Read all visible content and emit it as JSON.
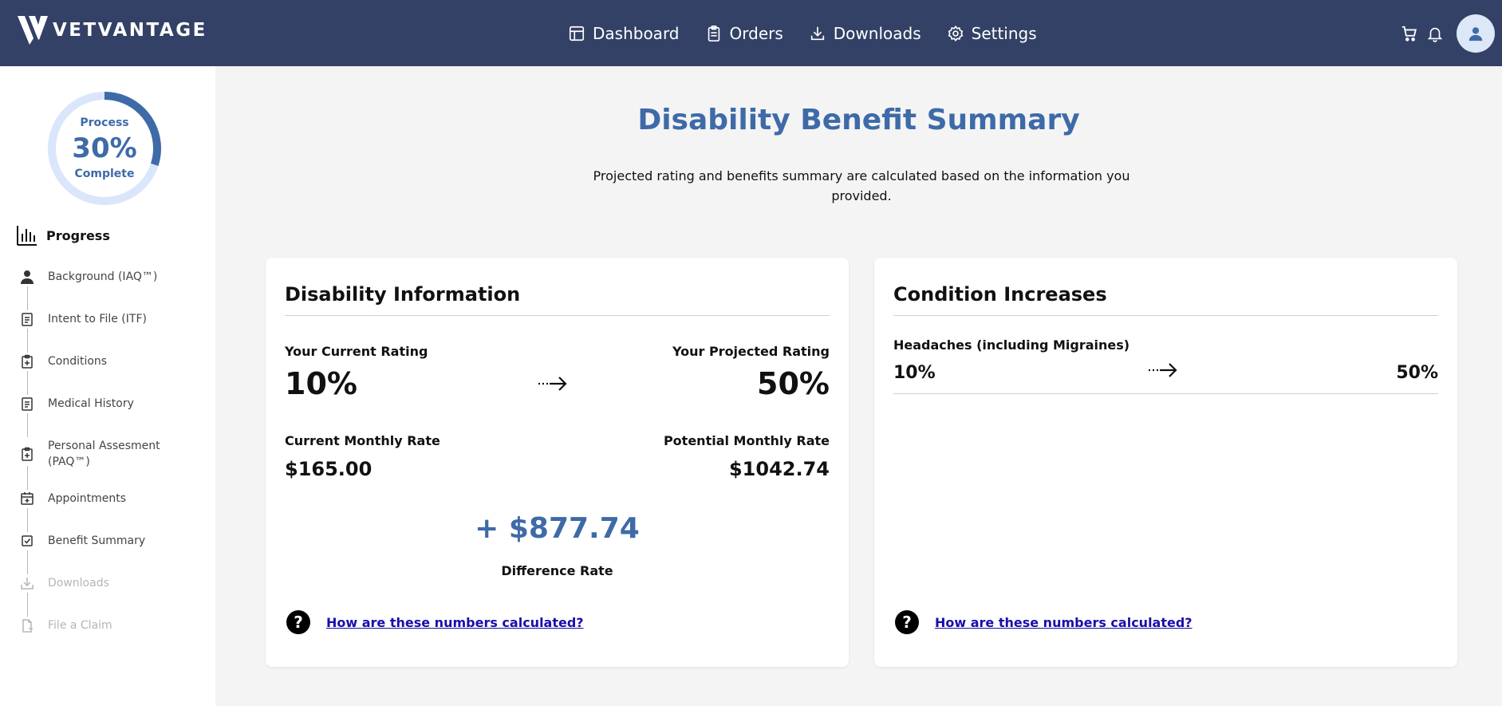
{
  "header": {
    "logo_text": "VETVANTAGE",
    "nav": [
      {
        "label": "Dashboard",
        "icon": "dashboard-icon"
      },
      {
        "label": "Orders",
        "icon": "clipboard-icon"
      },
      {
        "label": "Downloads",
        "icon": "download-icon"
      },
      {
        "label": "Settings",
        "icon": "gear-icon"
      }
    ],
    "icons": [
      "cart-icon",
      "bell-icon",
      "user-icon"
    ]
  },
  "sidebar": {
    "ring": {
      "top": "Process",
      "percent": "30%",
      "bottom": "Complete",
      "progress": 0.3
    },
    "progress_heading": "Progress",
    "steps": [
      {
        "label": "Background (IAQ™)",
        "icon": "person-icon",
        "enabled": true
      },
      {
        "label": "Intent to File (ITF)",
        "icon": "document-icon",
        "enabled": true
      },
      {
        "label": "Conditions",
        "icon": "clipboard-plus-icon",
        "enabled": true
      },
      {
        "label": "Medical History",
        "icon": "document-icon",
        "enabled": true
      },
      {
        "label": "Personal Assesment (PAQ™)",
        "icon": "clipboard-plus-icon",
        "enabled": true
      },
      {
        "label": "Appointments",
        "icon": "calendar-icon",
        "enabled": true
      },
      {
        "label": "Benefit Summary",
        "icon": "checkbox-icon",
        "enabled": true
      },
      {
        "label": "Downloads",
        "icon": "download-icon",
        "enabled": false
      },
      {
        "label": "File a Claim",
        "icon": "file-icon",
        "enabled": false
      }
    ]
  },
  "main": {
    "title": "Disability Benefit Summary",
    "subtitle": "Projected rating and benefits summary are calculated based on the information you provided.",
    "disability": {
      "title": "Disability Information",
      "current_rating_label": "Your Current Rating",
      "current_rating": "10%",
      "projected_rating_label": "Your Projected Rating",
      "projected_rating": "50%",
      "current_monthly_label": "Current Monthly Rate",
      "current_monthly": "$165.00",
      "potential_monthly_label": "Potential Monthly Rate",
      "potential_monthly": "$1042.74",
      "difference": "+ $877.74",
      "difference_label": "Difference Rate",
      "help_link": "How are these numbers calculated?"
    },
    "conditions": {
      "title": "Condition Increases",
      "items": [
        {
          "name": "Headaches (including Migraines)",
          "from": "10%",
          "to": "50%"
        }
      ],
      "help_link": "How are these numbers calculated?"
    }
  },
  "colors": {
    "header_bg": "#334166",
    "accent": "#3e6aa8",
    "ring_track": "#d9e6fb",
    "link": "#1a0dab"
  }
}
